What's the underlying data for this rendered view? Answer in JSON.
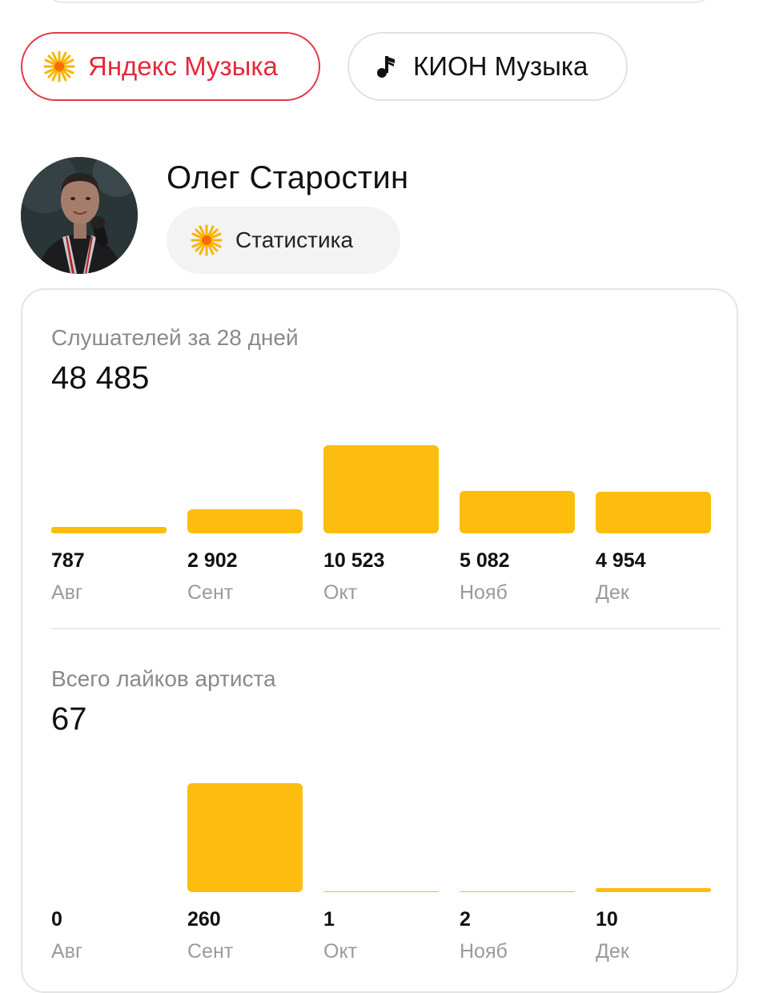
{
  "service_tabs": {
    "yandex": {
      "label": "Яндекс Музыка",
      "icon": "yandex-music-star-icon",
      "color": "#e5293b"
    },
    "kion": {
      "label": "КИОН Музыка",
      "icon": "music-note-icon"
    }
  },
  "artist": {
    "name": "Олег Старостин",
    "stats_label": "Статистика"
  },
  "colors": {
    "bar": "#fcbd0e",
    "accent_red": "#e5293b"
  },
  "listeners": {
    "title": "Слушателей за 28 дней",
    "total": "48 485",
    "chart_data": {
      "type": "bar",
      "categories": [
        "Авг",
        "Сент",
        "Окт",
        "Нояб",
        "Дек"
      ],
      "values": [
        787,
        2902,
        10523,
        5082,
        4954
      ],
      "value_labels": [
        "787",
        "2 902",
        "10 523",
        "5 082",
        "4 954"
      ]
    }
  },
  "likes": {
    "title": "Всего лайков артиста",
    "total": "67",
    "chart_data": {
      "type": "bar",
      "categories": [
        "Авг",
        "Сент",
        "Окт",
        "Нояб",
        "Дек"
      ],
      "values": [
        0,
        260,
        1,
        2,
        10
      ],
      "value_labels": [
        "0",
        "260",
        "1",
        "2",
        "10"
      ]
    }
  }
}
